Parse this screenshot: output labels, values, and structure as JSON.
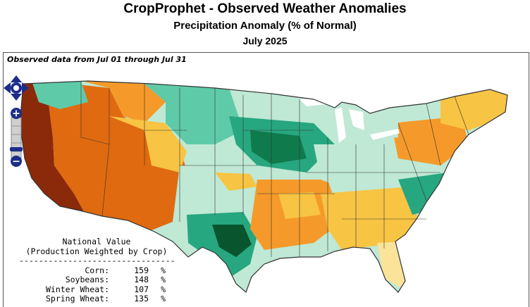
{
  "header": {
    "title": "CropProphet - Observed Weather Anomalies",
    "subtitle": "Precipitation Anomaly (% of Normal)",
    "period": "July 2025"
  },
  "map": {
    "observed_label": "Observed data from Jul 01 through Jul 31",
    "colors": {
      "very_dry": "#8b2a0a",
      "dry": "#e06a10",
      "below": "#f59a2a",
      "slightly_below": "#f8c443",
      "near_normal": "#fbe39a",
      "slightly_above": "#bfe8d5",
      "above": "#5fcaa8",
      "wet": "#27a77f",
      "very_wet": "#0f7a4c",
      "extreme_wet": "#08552e",
      "lakes": "#ffffff",
      "borders": "#333333"
    },
    "controls": {
      "pan_icon": "pan-arrows-icon",
      "zoom_in": "+",
      "zoom_out": "−"
    }
  },
  "national": {
    "title_line1": "National Value",
    "title_line2": "(Production Weighted by Crop)",
    "separator": "--------------------------------",
    "rows": [
      {
        "label": "Corn:",
        "value": "159",
        "unit": "%"
      },
      {
        "label": "Soybeans:",
        "value": "148",
        "unit": "%"
      },
      {
        "label": "Winter Wheat:",
        "value": "107",
        "unit": "%"
      },
      {
        "label": "Spring Wheat:",
        "value": "135",
        "unit": "%"
      }
    ]
  }
}
